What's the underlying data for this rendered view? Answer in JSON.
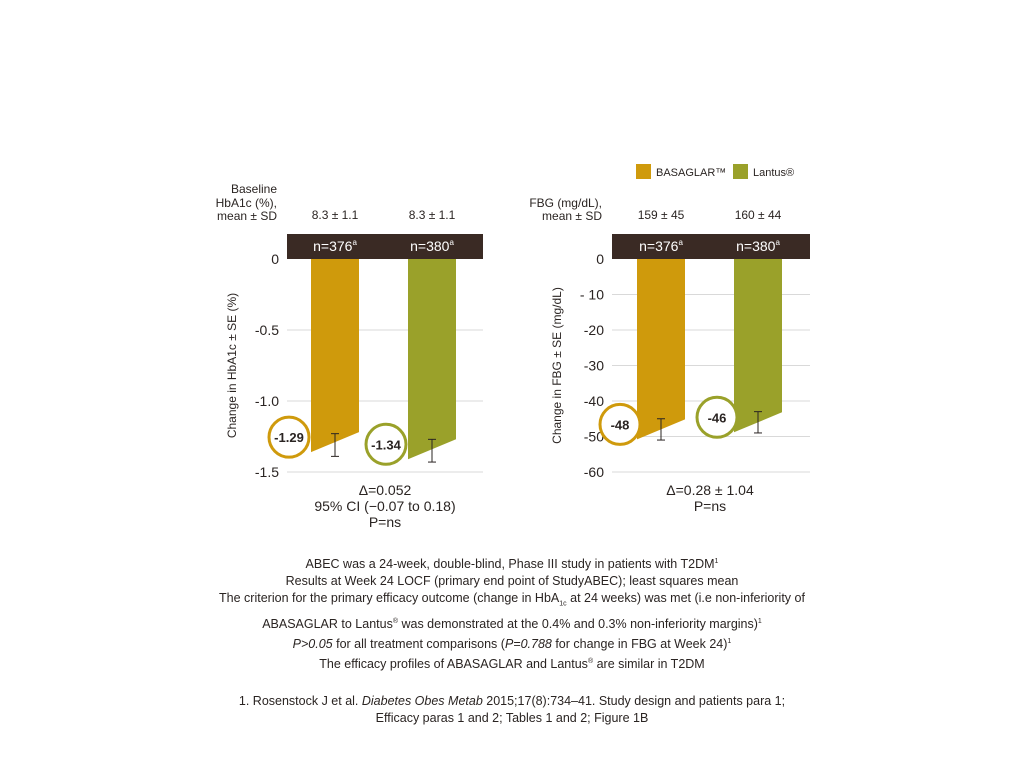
{
  "colors": {
    "basaglar": "#CF9A0C",
    "lantus": "#9AA12A",
    "header_bar": "#3A2A24",
    "grid": "#d9d9d9",
    "text": "#2a2422"
  },
  "legend": {
    "basaglar_label": "BASAGLAR™",
    "lantus_label": "Lantus®"
  },
  "chart_data": [
    {
      "type": "bar",
      "id": "hba1c",
      "baseline_label_lines": [
        "Baseline",
        "HbA1c (%),",
        "mean ± SD"
      ],
      "baseline_values": [
        "8.3 ± 1.1",
        "8.3 ± 1.1"
      ],
      "n_labels": [
        "n=376",
        "n=380"
      ],
      "n_superscript": "a",
      "ylabel": "Change in HbA1c ± SE (%)",
      "ylim": [
        -1.5,
        0
      ],
      "yticks": [
        0,
        -0.5,
        -1.0,
        -1.5
      ],
      "ytick_labels": [
        "0",
        "-0.5",
        "-1.0",
        "-1.5"
      ],
      "series": [
        {
          "name": "BASAGLAR™",
          "value": -1.29,
          "value_label": "-1.29",
          "error_low": -1.39,
          "error_high": -1.23
        },
        {
          "name": "Lantus®",
          "value": -1.34,
          "value_label": "-1.34",
          "error_low": -1.43,
          "error_high": -1.27
        }
      ],
      "stats_lines": [
        "Δ=0.052",
        "95% CI (−0.07 to 0.18)",
        "P=ns"
      ]
    },
    {
      "type": "bar",
      "id": "fbg",
      "baseline_label_lines": [
        "FBG (mg/dL),",
        "mean ± SD"
      ],
      "baseline_values": [
        "159 ± 45",
        "160 ± 44"
      ],
      "n_labels": [
        "n=376",
        "n=380"
      ],
      "n_superscript": "a",
      "ylabel": "Change in FBG ± SE (mg/dL)",
      "ylim": [
        -60,
        0
      ],
      "yticks": [
        0,
        -10,
        -20,
        -30,
        -40,
        -50,
        -60
      ],
      "ytick_labels": [
        "0",
        "- 10",
        "-20",
        "-30",
        "-40",
        "-50",
        "-60"
      ],
      "series": [
        {
          "name": "BASAGLAR™",
          "value": -48,
          "value_label": "-48",
          "error_low": -51,
          "error_high": -45
        },
        {
          "name": "Lantus®",
          "value": -46,
          "value_label": "-46",
          "error_low": -49,
          "error_high": -43
        }
      ],
      "stats_lines": [
        "Δ=0.28 ± 1.04",
        "P=ns"
      ]
    }
  ],
  "footer": {
    "line1_text": "ABEC was a 24-week, double-blind, Phase III study in patients with T2DM",
    "line1_sup": "1",
    "line2": "Results at Week 24 LOCF (primary end point of StudyABEC); least squares mean",
    "line3_a": "The criterion for the primary efficacy outcome (change in HbA",
    "line3_sub": "1c",
    "line3_b": " at 24 weeks) was met (i.e non-inferiority of",
    "line4_a": "ABASAGLAR to Lantus",
    "line4_reg": "®",
    "line4_b": " was demonstrated at the 0.4% and 0.3% non-inferiority margins)",
    "line4_sup": "1",
    "line5_italic": "P>0.05",
    "line5_mid": " for all treatment comparisons (",
    "line5_italic2": "P=0.788",
    "line5_end": " for change in FBG at Week 24)",
    "line5_sup": "1",
    "line6_a": "The efficacy profiles of ABASAGLAR and Lantus",
    "line6_reg": "®",
    "line6_b": " are similar in T2DM",
    "ref_a": "1. Rosenstock J et al. ",
    "ref_journal": "Diabetes Obes Metab",
    "ref_b": " 2015;17(8):734–41. Study design and patients para 1;",
    "ref_c": "Efficacy paras 1 and 2; Tables 1 and 2; Figure 1B"
  }
}
